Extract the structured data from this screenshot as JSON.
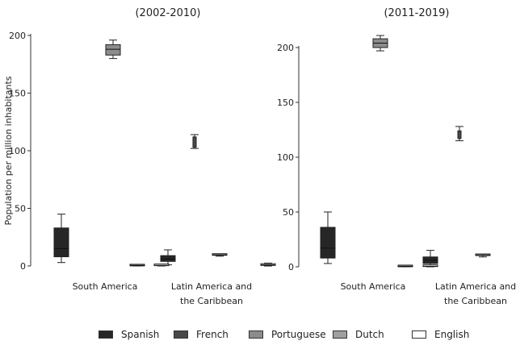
{
  "colors": {
    "spanish": "#262626",
    "french": "#484848",
    "portuguese": "#8c8c8c",
    "dutch": "#a0a0a0",
    "english": "#ffffff"
  },
  "chart_data": [
    {
      "type": "boxplot",
      "title": "(2002-2010)",
      "ylabel": "Population per million inhabitants",
      "xlabel": "",
      "ylim": [
        0,
        200
      ],
      "yticks": [
        0,
        50,
        100,
        150,
        200
      ],
      "categories": [
        "South America",
        "Latin America and\nthe Caribbean"
      ],
      "series": [
        {
          "name": "Spanish",
          "boxes": [
            {
              "min": 3,
              "q1": 8,
              "median": 15,
              "q3": 33,
              "max": 45
            },
            {
              "min": 1,
              "q1": 4,
              "median": 6,
              "q3": 9,
              "max": 14
            }
          ]
        },
        {
          "name": "French",
          "boxes": [
            null,
            {
              "min": 102,
              "q1": 103,
              "median": 108,
              "q3": 112,
              "max": 114
            }
          ]
        },
        {
          "name": "Portuguese",
          "boxes": [
            {
              "min": 180,
              "q1": 183,
              "median": 188,
              "q3": 192,
              "max": 196
            },
            {
              "min": 8.5,
              "q1": 9,
              "median": 9.5,
              "q3": 10,
              "max": 10.5
            }
          ]
        },
        {
          "name": "Dutch",
          "boxes": [
            {
              "min": 0,
              "q1": 0.2,
              "median": 0.5,
              "q3": 0.8,
              "max": 1
            },
            null
          ]
        },
        {
          "name": "English",
          "boxes": [
            {
              "min": 0,
              "q1": 0.2,
              "median": 0.5,
              "q3": 1,
              "max": 1.5
            },
            {
              "min": 0,
              "q1": 0.5,
              "median": 1,
              "q3": 2,
              "max": 2.5
            }
          ]
        }
      ]
    },
    {
      "type": "boxplot",
      "title": "(2011-2019)",
      "ylabel": "",
      "xlabel": "",
      "ylim": [
        0,
        200
      ],
      "yticks": [
        0,
        50,
        100,
        150,
        200
      ],
      "categories": [
        "South America",
        "Latin America and\nthe Caribbean"
      ],
      "series": [
        {
          "name": "Spanish",
          "boxes": [
            {
              "min": 3,
              "q1": 8,
              "median": 17,
              "q3": 36,
              "max": 50
            },
            {
              "min": 1,
              "q1": 3,
              "median": 6,
              "q3": 9,
              "max": 15
            }
          ]
        },
        {
          "name": "French",
          "boxes": [
            null,
            {
              "min": 115,
              "q1": 117,
              "median": 121,
              "q3": 124,
              "max": 128
            }
          ]
        },
        {
          "name": "Portuguese",
          "boxes": [
            {
              "min": 197,
              "q1": 200,
              "median": 204,
              "q3": 208,
              "max": 211
            },
            {
              "min": 9,
              "q1": 10,
              "median": 10.5,
              "q3": 11,
              "max": 11.5
            }
          ]
        },
        {
          "name": "Dutch",
          "boxes": [
            {
              "min": 0,
              "q1": 0.2,
              "median": 0.5,
              "q3": 0.8,
              "max": 1
            },
            null
          ]
        },
        {
          "name": "English",
          "boxes": [
            {
              "min": 0,
              "q1": 0.2,
              "median": 0.5,
              "q3": 1,
              "max": 1.5
            },
            {
              "min": 0,
              "q1": 0.5,
              "median": 1,
              "q3": 2,
              "max": 2.5
            }
          ]
        }
      ]
    }
  ],
  "legend": [
    {
      "key": "spanish",
      "label": "Spanish"
    },
    {
      "key": "french",
      "label": "French"
    },
    {
      "key": "portuguese",
      "label": "Portuguese"
    },
    {
      "key": "dutch",
      "label": "Dutch"
    },
    {
      "key": "english",
      "label": "English"
    }
  ]
}
